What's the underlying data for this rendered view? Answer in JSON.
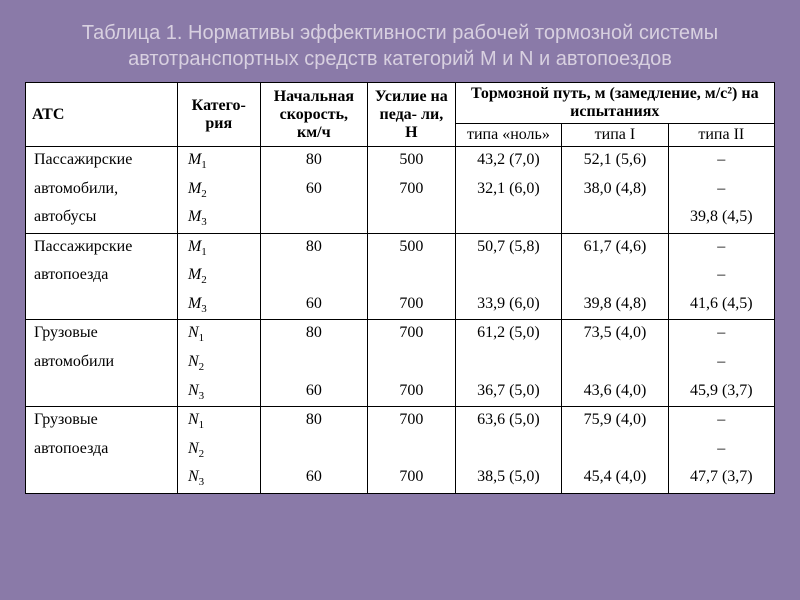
{
  "title": "Таблица 1. Нормативы эффективности рабочей тормозной системы автотранспортных средств категорий M и N и автопоездов",
  "headers": {
    "ats": "АТС",
    "category": "Катего-\nрия",
    "speed": "Начальная скорость, км/ч",
    "force": "Усилие на педа-\nли, Н",
    "brake_path": "Тормозной путь, м\n(замедление, м/с²) на испытаниях",
    "type0": "типа «ноль»",
    "type1": "типа I",
    "type2": "типа II"
  },
  "groups": [
    {
      "name": "Пассажирские автомобили, автобусы",
      "lines": [
        "Пассажирские",
        "автомобили,",
        "автобусы"
      ],
      "rows": [
        {
          "cat": "M",
          "catsub": "1",
          "speed": "80",
          "force": "500",
          "t0": "43,2 (7,0)",
          "t1": "52,1 (5,6)",
          "t2": "–"
        },
        {
          "cat": "M",
          "catsub": "2",
          "speed": "60",
          "force": "700",
          "t0": "32,1 (6,0)",
          "t1": "38,0 (4,8)",
          "t2": "–"
        },
        {
          "cat": "M",
          "catsub": "3",
          "speed": "",
          "force": "",
          "t0": "",
          "t1": "",
          "t2": "39,8 (4,5)"
        }
      ]
    },
    {
      "name": "Пассажирские автопоезда",
      "lines": [
        "Пассажирские",
        "автопоезда",
        ""
      ],
      "rows": [
        {
          "cat": "M",
          "catsub": "1",
          "speed": "80",
          "force": "500",
          "t0": "50,7 (5,8)",
          "t1": "61,7 (4,6)",
          "t2": "–"
        },
        {
          "cat": "M",
          "catsub": "2",
          "speed": "",
          "force": "",
          "t0": "",
          "t1": "",
          "t2": "–"
        },
        {
          "cat": "M",
          "catsub": "3",
          "speed": "60",
          "force": "700",
          "t0": "33,9 (6,0)",
          "t1": "39,8 (4,8)",
          "t2": "41,6 (4,5)"
        }
      ]
    },
    {
      "name": "Грузовые автомобили",
      "lines": [
        "Грузовые",
        "автомобили",
        ""
      ],
      "rows": [
        {
          "cat": "N",
          "catsub": "1",
          "speed": "80",
          "force": "700",
          "t0": "61,2 (5,0)",
          "t1": "73,5 (4,0)",
          "t2": "–"
        },
        {
          "cat": "N",
          "catsub": "2",
          "speed": "",
          "force": "",
          "t0": "",
          "t1": "",
          "t2": "–"
        },
        {
          "cat": "N",
          "catsub": "3",
          "speed": "60",
          "force": "700",
          "t0": "36,7 (5,0)",
          "t1": "43,6 (4,0)",
          "t2": "45,9 (3,7)"
        }
      ]
    },
    {
      "name": "Грузовые автопоезда",
      "lines": [
        "Грузовые",
        "автопоезда",
        ""
      ],
      "rows": [
        {
          "cat": "N",
          "catsub": "1",
          "speed": "80",
          "force": "700",
          "t0": "63,6 (5,0)",
          "t1": "75,9 (4,0)",
          "t2": "–"
        },
        {
          "cat": "N",
          "catsub": "2",
          "speed": "",
          "force": "",
          "t0": "",
          "t1": "",
          "t2": "–"
        },
        {
          "cat": "N",
          "catsub": "3",
          "speed": "60",
          "force": "700",
          "t0": "38,5 (5,0)",
          "t1": "45,4 (4,0)",
          "t2": "47,7 (3,7)"
        }
      ]
    }
  ],
  "styling": {
    "background_color": "#8a7aa8",
    "title_color": "#d8d0e0",
    "title_fontsize": 20,
    "table_bg": "#ffffff",
    "border_color": "#000000",
    "cell_font": "Times New Roman",
    "cell_fontsize": 16
  }
}
